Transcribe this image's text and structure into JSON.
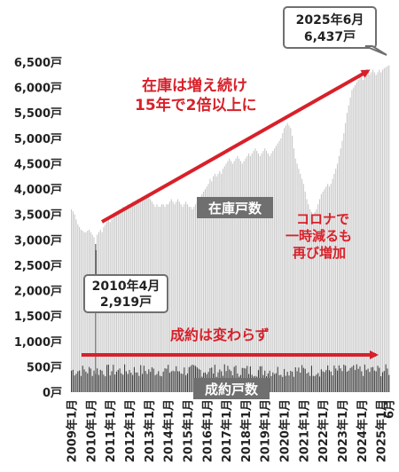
{
  "chart_data": {
    "type": "bar",
    "title": "",
    "xlabel": "",
    "ylabel": "",
    "ylim": [
      0,
      6500
    ],
    "y_ticks": [
      "0戸",
      "500戸",
      "1,000戸",
      "1,500戸",
      "2,000戸",
      "2,500戸",
      "3,000戸",
      "3,500戸",
      "4,000戸",
      "4,500戸",
      "5,000戸",
      "5,500戸",
      "6,000戸",
      "6,500戸"
    ],
    "y_tick_values": [
      0,
      500,
      1000,
      1500,
      2000,
      2500,
      3000,
      3500,
      4000,
      4500,
      5000,
      5500,
      6000,
      6500
    ],
    "x_ticks": [
      "2009年1月",
      "2010年1月",
      "2011年1月",
      "2012年1月",
      "2013年1月",
      "2014年1月",
      "2015年1月",
      "2016年1月",
      "2017年1月",
      "2018年1月",
      "2019年1月",
      "2020年1月",
      "2021年1月",
      "2022年1月",
      "2023年1月",
      "2024年1月",
      "2025年1月",
      "6月"
    ],
    "x_range": [
      "2009-01",
      "2025-06"
    ],
    "grid": false,
    "series": [
      {
        "name": "在庫戸数",
        "color": "#c8c8c8",
        "values_by_year": {
          "2009": [
            3600,
            3560,
            3500,
            3400,
            3300,
            3250,
            3200,
            3180,
            3150,
            3150,
            3180,
            3200
          ],
          "2010": [
            3150,
            3100,
            3050,
            2919,
            3100,
            3150,
            3200,
            3150,
            3250,
            3300,
            3350,
            3400
          ],
          "2011": [
            3350,
            3400,
            3450,
            3500,
            3550,
            3500,
            3550,
            3600,
            3650,
            3600,
            3650,
            3700
          ],
          "2012": [
            3650,
            3700,
            3750,
            3700,
            3750,
            3800,
            3750,
            3800,
            3850,
            3800,
            3850,
            3900
          ],
          "2013": [
            3850,
            3800,
            3750,
            3700,
            3650,
            3700,
            3650,
            3650,
            3700,
            3700,
            3650,
            3700
          ],
          "2014": [
            3700,
            3750,
            3800,
            3750,
            3700,
            3750,
            3800,
            3750,
            3700,
            3650,
            3700,
            3750
          ],
          "2015": [
            3700,
            3650,
            3650,
            3600,
            3650,
            3700,
            3750,
            3800,
            3850,
            3900,
            3950,
            4000
          ],
          "2016": [
            4050,
            4100,
            4200,
            4150,
            4250,
            4300,
            4250,
            4300,
            4350,
            4300,
            4400,
            4450
          ],
          "2017": [
            4500,
            4550,
            4600,
            4550,
            4500,
            4550,
            4600,
            4650,
            4600,
            4550,
            4500,
            4550
          ],
          "2018": [
            4600,
            4650,
            4700,
            4650,
            4700,
            4750,
            4800,
            4750,
            4700,
            4650,
            4700,
            4750
          ],
          "2019": [
            4800,
            4750,
            4700,
            4650,
            4700,
            4750,
            4800,
            4850,
            4900,
            4950,
            5000,
            5100
          ],
          "2020": [
            5200,
            5250,
            5300,
            5250,
            5200,
            5050,
            4800,
            4600,
            4500,
            4400,
            4300,
            4200
          ],
          "2021": [
            4100,
            3950,
            3800,
            3700,
            3600,
            3550,
            3500,
            3550,
            3600,
            3700,
            3800,
            3900
          ],
          "2022": [
            3950,
            4000,
            4050,
            4100,
            4050,
            4100,
            4200,
            4300,
            4400,
            4500,
            4650,
            4800
          ],
          "2023": [
            4950,
            5100,
            5300,
            5500,
            5650,
            5800,
            5950,
            6000,
            6050,
            6100,
            6150,
            6200
          ],
          "2024": [
            6200,
            6150,
            6200,
            6250,
            6300,
            6250,
            6300,
            6350,
            6300,
            6250,
            6300,
            6350
          ],
          "2025": [
            6300,
            6350,
            6380,
            6400,
            6420,
            6437
          ]
        }
      },
      {
        "name": "成約戸数",
        "color": "#3a3a3a",
        "approx_range": [
          300,
          550
        ]
      }
    ]
  },
  "annotations": {
    "big_arrow_text_line1": "在庫は増え続け",
    "big_arrow_text_line2": "15年で2倍以上に",
    "covid_line1": "コロナで",
    "covid_line2": "一時減るも",
    "covid_line3": "再び増加",
    "flat_arrow_text": "成約は変わらず",
    "stock_label": "在庫戸数",
    "sales_label": "成約戸数",
    "callout_low_line1": "2010年4月",
    "callout_low_line2": "2,919戸",
    "callout_high_line1": "2025年6月",
    "callout_high_line2": "6,437戸"
  },
  "colors": {
    "accent_red": "#d8202a",
    "stock_bar": "#c8c8c8",
    "sales_bar": "#3a3a3a",
    "label_box": "#6f6f6f"
  }
}
